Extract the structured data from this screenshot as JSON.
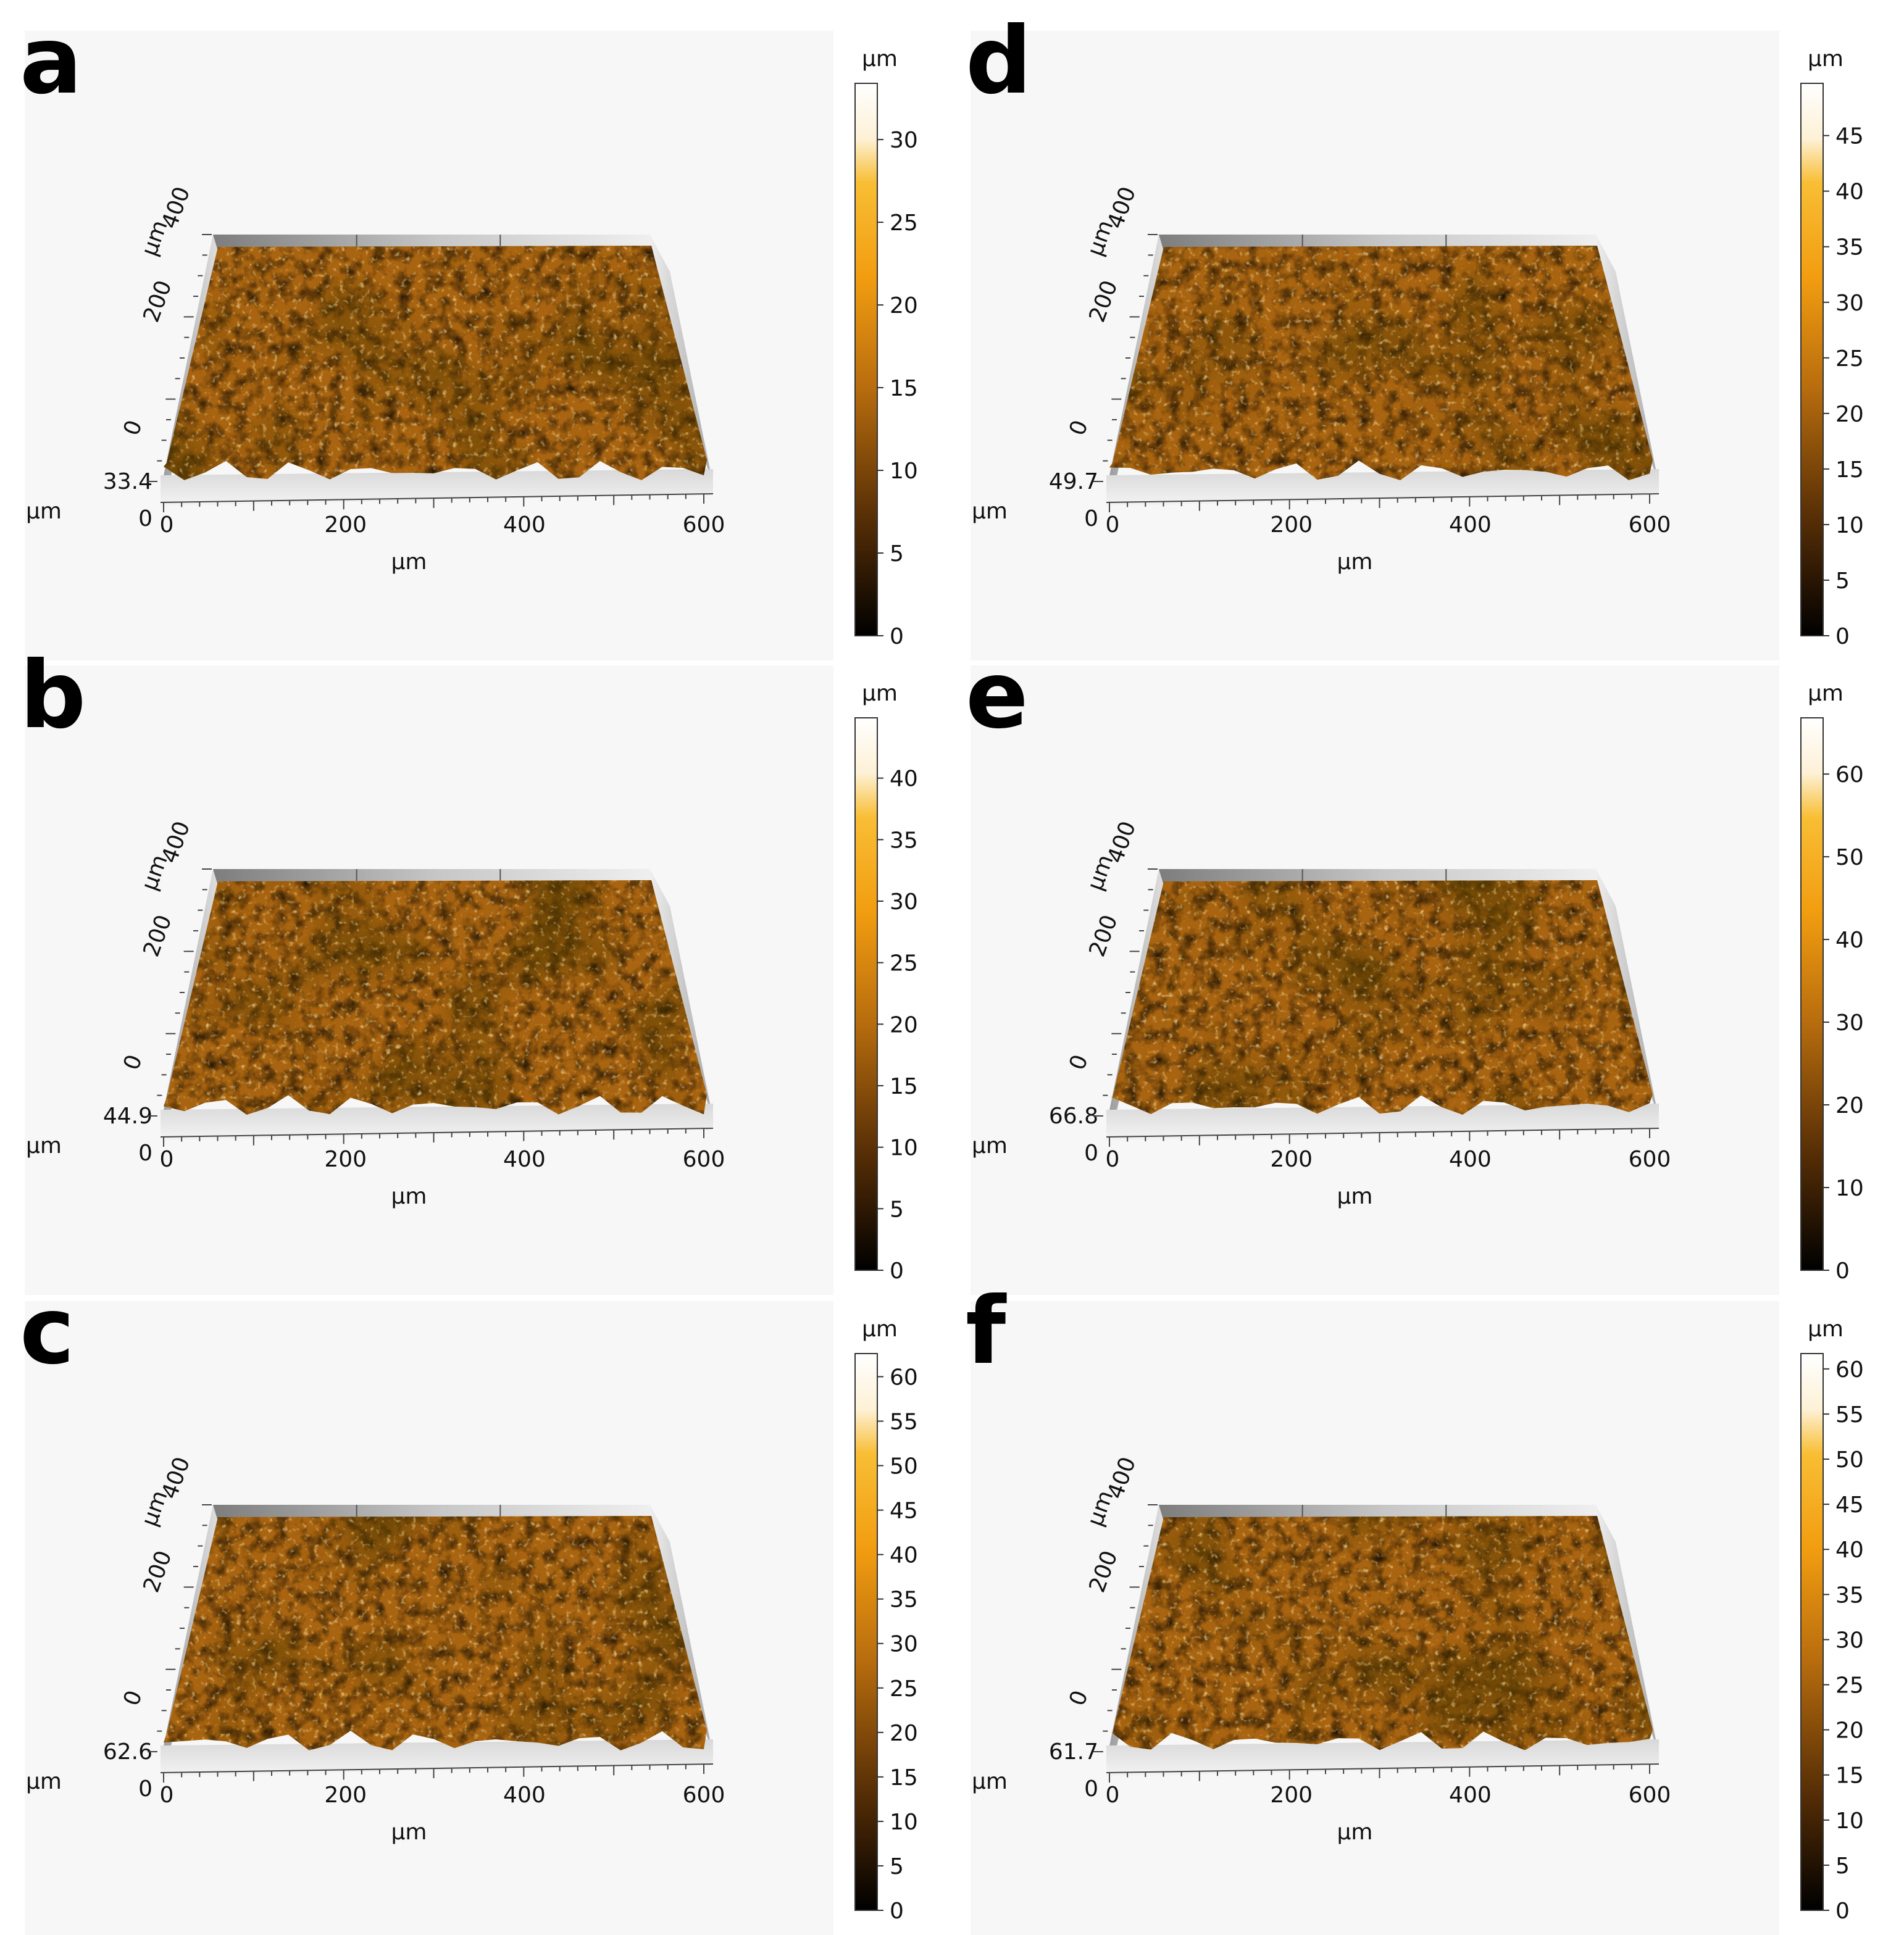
{
  "unit": "µm",
  "panels": [
    {
      "letter": "a",
      "z_label": "33.4",
      "z_zero": "0",
      "x_ticks": [
        "0",
        "200",
        "400",
        "600"
      ],
      "y_ticks": [
        "0",
        "200",
        "400"
      ],
      "colorbar": {
        "max": 33.4,
        "ticks": [
          "0",
          "5",
          "10",
          "15",
          "20",
          "25",
          "30"
        ]
      }
    },
    {
      "letter": "b",
      "z_label": "44.9",
      "z_zero": "0",
      "x_ticks": [
        "0",
        "200",
        "400",
        "600"
      ],
      "y_ticks": [
        "0",
        "200",
        "400"
      ],
      "colorbar": {
        "max": 44.9,
        "ticks": [
          "0",
          "5",
          "10",
          "15",
          "20",
          "25",
          "30",
          "35",
          "40"
        ]
      }
    },
    {
      "letter": "c",
      "z_label": "62.6",
      "z_zero": "0",
      "x_ticks": [
        "0",
        "200",
        "400",
        "600"
      ],
      "y_ticks": [
        "0",
        "200",
        "400"
      ],
      "colorbar": {
        "max": 62.6,
        "ticks": [
          "0",
          "5",
          "10",
          "15",
          "20",
          "25",
          "30",
          "35",
          "40",
          "45",
          "50",
          "55",
          "60"
        ]
      }
    },
    {
      "letter": "d",
      "z_label": "49.7",
      "z_zero": "0",
      "x_ticks": [
        "0",
        "200",
        "400",
        "600"
      ],
      "y_ticks": [
        "0",
        "200",
        "400"
      ],
      "colorbar": {
        "max": 49.7,
        "ticks": [
          "0",
          "5",
          "10",
          "15",
          "20",
          "25",
          "30",
          "35",
          "40",
          "45"
        ]
      }
    },
    {
      "letter": "e",
      "z_label": "66.8",
      "z_zero": "0",
      "x_ticks": [
        "0",
        "200",
        "400",
        "600"
      ],
      "y_ticks": [
        "0",
        "200",
        "400"
      ],
      "colorbar": {
        "max": 66.8,
        "ticks": [
          "0",
          "10",
          "20",
          "30",
          "40",
          "50",
          "60"
        ]
      }
    },
    {
      "letter": "f",
      "z_label": "61.7",
      "z_zero": "0",
      "x_ticks": [
        "0",
        "200",
        "400",
        "600"
      ],
      "y_ticks": [
        "0",
        "200",
        "400"
      ],
      "colorbar": {
        "max": 61.7,
        "ticks": [
          "0",
          "5",
          "10",
          "15",
          "20",
          "25",
          "30",
          "35",
          "40",
          "45",
          "50",
          "55",
          "60"
        ]
      }
    }
  ],
  "colors": {
    "panel_bg": "#f7f7f7",
    "surface_dark": "#2a1a06",
    "surface_mid": "#a86410",
    "surface_light": "#e6a21c",
    "colormap": [
      "#000000",
      "#6b3a06",
      "#c87a10",
      "#f7a70f",
      "#f7c33f",
      "#ffffff"
    ]
  }
}
